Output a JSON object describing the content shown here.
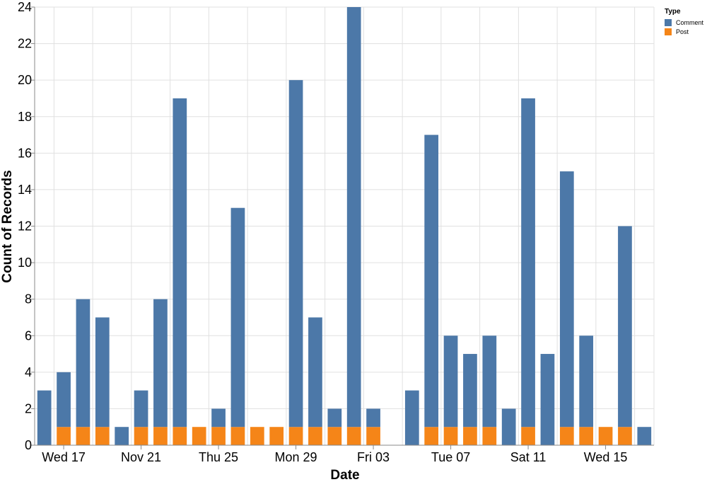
{
  "chart_data": {
    "type": "bar",
    "stacked": true,
    "xlabel": "Date",
    "ylabel": "Count of Records",
    "ylim": [
      0,
      24
    ],
    "yticks": [
      0,
      2,
      4,
      6,
      8,
      10,
      12,
      14,
      16,
      18,
      20,
      22,
      24
    ],
    "grid": true,
    "legend": {
      "title": "Type",
      "placement": "top-right",
      "entries": [
        {
          "name": "Comment",
          "color": "#4c78a8"
        },
        {
          "name": "Post",
          "color": "#f58518"
        }
      ]
    },
    "x_tick_labels": [
      {
        "label": "Wed 17",
        "date": "2021-11-17"
      },
      {
        "label": "Nov 21",
        "date": "2021-11-21"
      },
      {
        "label": "Thu 25",
        "date": "2021-11-25"
      },
      {
        "label": "Mon 29",
        "date": "2021-11-29"
      },
      {
        "label": "Fri 03",
        "date": "2021-12-03"
      },
      {
        "label": "Tue 07",
        "date": "2021-12-07"
      },
      {
        "label": "Sat 11",
        "date": "2021-12-11"
      },
      {
        "label": "Wed 15",
        "date": "2021-12-15"
      }
    ],
    "categories": [
      "2021-11-16",
      "2021-11-17",
      "2021-11-18",
      "2021-11-19",
      "2021-11-20",
      "2021-11-21",
      "2021-11-22",
      "2021-11-23",
      "2021-11-24",
      "2021-11-25",
      "2021-11-26",
      "2021-11-27",
      "2021-11-28",
      "2021-11-29",
      "2021-11-30",
      "2021-12-01",
      "2021-12-02",
      "2021-12-03",
      "2021-12-04",
      "2021-12-05",
      "2021-12-06",
      "2021-12-07",
      "2021-12-08",
      "2021-12-09",
      "2021-12-10",
      "2021-12-11",
      "2021-12-12",
      "2021-12-13",
      "2021-12-14",
      "2021-12-15",
      "2021-12-16",
      "2021-12-17"
    ],
    "series": [
      {
        "name": "Post",
        "values": [
          0,
          1,
          1,
          1,
          0,
          1,
          1,
          1,
          1,
          1,
          1,
          1,
          1,
          1,
          1,
          1,
          1,
          1,
          0,
          0,
          1,
          1,
          1,
          1,
          0,
          1,
          0,
          1,
          1,
          1,
          1,
          0
        ]
      },
      {
        "name": "Comment",
        "values": [
          3,
          3,
          7,
          6,
          1,
          2,
          7,
          18,
          0,
          1,
          12,
          0,
          0,
          19,
          6,
          1,
          23,
          1,
          0,
          3,
          16,
          5,
          4,
          5,
          2,
          18,
          5,
          14,
          5,
          0,
          11,
          1
        ]
      }
    ]
  }
}
